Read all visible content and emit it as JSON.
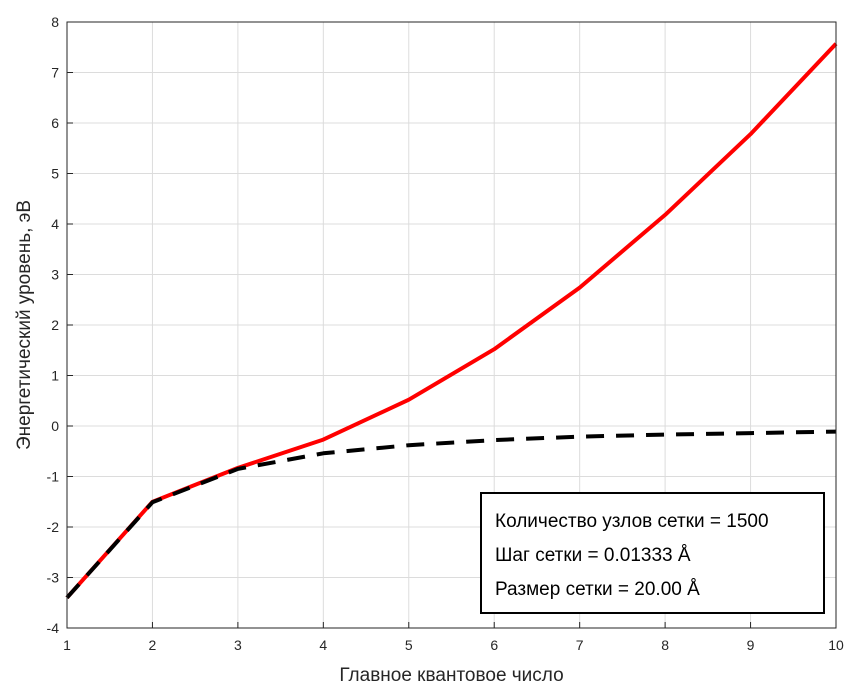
{
  "chart_data": {
    "type": "line",
    "title": "",
    "xlabel": "Главное квантовое число",
    "ylabel": "Энергетический уровень, эВ",
    "xlim": [
      1,
      10
    ],
    "ylim": [
      -4,
      8
    ],
    "xticks": [
      1,
      2,
      3,
      4,
      5,
      6,
      7,
      8,
      9,
      10
    ],
    "yticks": [
      -4,
      -3,
      -2,
      -1,
      0,
      1,
      2,
      3,
      4,
      5,
      6,
      7,
      8
    ],
    "grid": true,
    "series": [
      {
        "color": "#ff0000",
        "style": "solid",
        "x": [
          1,
          2,
          3,
          4,
          5,
          6,
          7,
          8,
          9,
          10
        ],
        "y": [
          -3.4,
          -1.5,
          -0.83,
          -0.27,
          0.52,
          1.52,
          2.74,
          4.18,
          5.78,
          7.57
        ]
      },
      {
        "color": "#000000",
        "style": "dashed",
        "x": [
          1,
          2,
          3,
          4,
          5,
          6,
          7,
          8,
          9,
          10
        ],
        "y": [
          -3.4,
          -1.51,
          -0.85,
          -0.54,
          -0.38,
          -0.28,
          -0.21,
          -0.17,
          -0.14,
          -0.11
        ]
      }
    ],
    "annotation": {
      "placement": "bottom-right",
      "lines": [
        "Количество узлов сетки = 1500",
        "Шаг сетки = 0.01333 Å",
        "Размер сетки = 20.00 Å"
      ]
    }
  }
}
